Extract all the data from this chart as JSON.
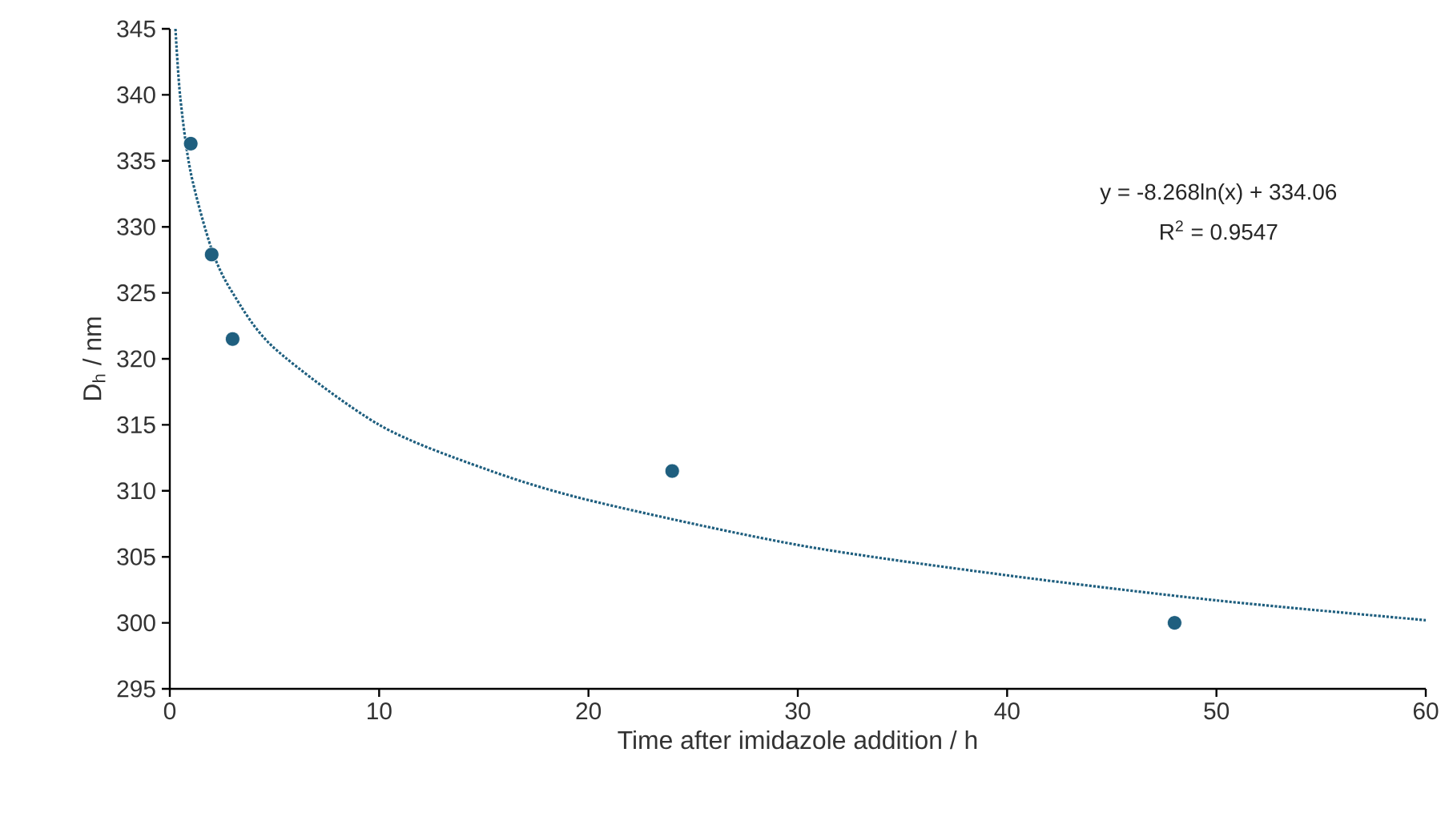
{
  "chart_data": {
    "type": "scatter",
    "xlabel": "Time after imidazole addition / h",
    "ylabel": "D$_{h}$ / nm",
    "xlim": [
      0,
      60
    ],
    "xticks": [
      0,
      10,
      20,
      30,
      40,
      50,
      60
    ],
    "ylim": [
      295,
      345
    ],
    "yticks": [
      295,
      300,
      305,
      310,
      315,
      320,
      325,
      330,
      335,
      340,
      345
    ],
    "marker": "circle",
    "grid": false,
    "series": [
      {
        "color": "#1f5f7f",
        "x": [
          1,
          2,
          3,
          24,
          48
        ],
        "values": [
          336.3,
          327.9,
          321.5,
          311.5,
          300.0
        ]
      },
      {
        "type": "line",
        "color": "#1f5f7f",
        "line_style": "dotted",
        "marker": "none",
        "x": [
          0.27,
          0.5,
          1,
          2,
          3,
          5,
          10,
          15,
          20,
          30,
          40,
          50,
          60
        ],
        "values": [
          345,
          339.8,
          334.1,
          328.3,
          325.0,
          320.8,
          315.0,
          311.7,
          309.3,
          305.9,
          303.6,
          301.7,
          300.2
        ]
      }
    ],
    "annotations": [
      "y = -8.268ln(x) + 334.06",
      "R$^{2}$ = 0.9547"
    ]
  }
}
